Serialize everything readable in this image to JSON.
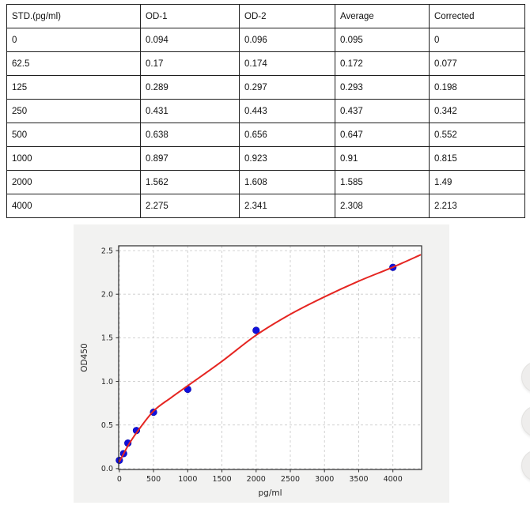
{
  "table": {
    "headers": [
      "STD.(pg/ml)",
      "OD-1",
      "OD-2",
      "Average",
      "Corrected"
    ],
    "rows": [
      [
        "0",
        "0.094",
        "0.096",
        "0.095",
        "0"
      ],
      [
        "62.5",
        "0.17",
        "0.174",
        "0.172",
        "0.077"
      ],
      [
        "125",
        "0.289",
        "0.297",
        "0.293",
        "0.198"
      ],
      [
        "250",
        "0.431",
        "0.443",
        "0.437",
        "0.342"
      ],
      [
        "500",
        "0.638",
        "0.656",
        "0.647",
        "0.552"
      ],
      [
        "1000",
        "0.897",
        "0.923",
        "0.91",
        "0.815"
      ],
      [
        "2000",
        "1.562",
        "1.608",
        "1.585",
        "1.49"
      ],
      [
        "4000",
        "2.275",
        "2.341",
        "2.308",
        "2.213"
      ]
    ]
  },
  "chart_data": {
    "type": "scatter",
    "title": "",
    "xlabel": "pg/ml",
    "ylabel": "OD450",
    "xlim": [
      -10,
      4420
    ],
    "ylim": [
      -0.01,
      2.555
    ],
    "xticks": [
      0,
      500,
      1000,
      1500,
      2000,
      2500,
      3000,
      3500,
      4000
    ],
    "yticks": [
      0.0,
      0.5,
      1.0,
      1.5,
      2.0,
      2.5
    ],
    "grid": "dashed",
    "legend": "none",
    "series": [
      {
        "name": "standard-points",
        "type": "scatter",
        "color": "#1010dd",
        "x": [
          0,
          62.5,
          125,
          250,
          500,
          1000,
          2000,
          4000
        ],
        "y": [
          0.095,
          0.172,
          0.293,
          0.437,
          0.647,
          0.91,
          1.585,
          2.308
        ]
      },
      {
        "name": "fit-curve",
        "type": "line",
        "color": "#e52521",
        "x": [
          0,
          62.5,
          125,
          250,
          500,
          750,
          1000,
          1500,
          2000,
          2500,
          3000,
          3500,
          4000,
          4400
        ],
        "y": [
          0.08,
          0.17,
          0.26,
          0.41,
          0.66,
          0.81,
          0.95,
          1.23,
          1.53,
          1.77,
          1.97,
          2.15,
          2.31,
          2.45
        ]
      }
    ],
    "colors": {
      "figure_bg": "#f2f2f1",
      "plot_bg": "#ffffff",
      "grid": "#cccccc",
      "spine": "#2b2b2b",
      "tick_label": "#262626"
    }
  },
  "decor": {
    "floating_circle_count": 3
  }
}
